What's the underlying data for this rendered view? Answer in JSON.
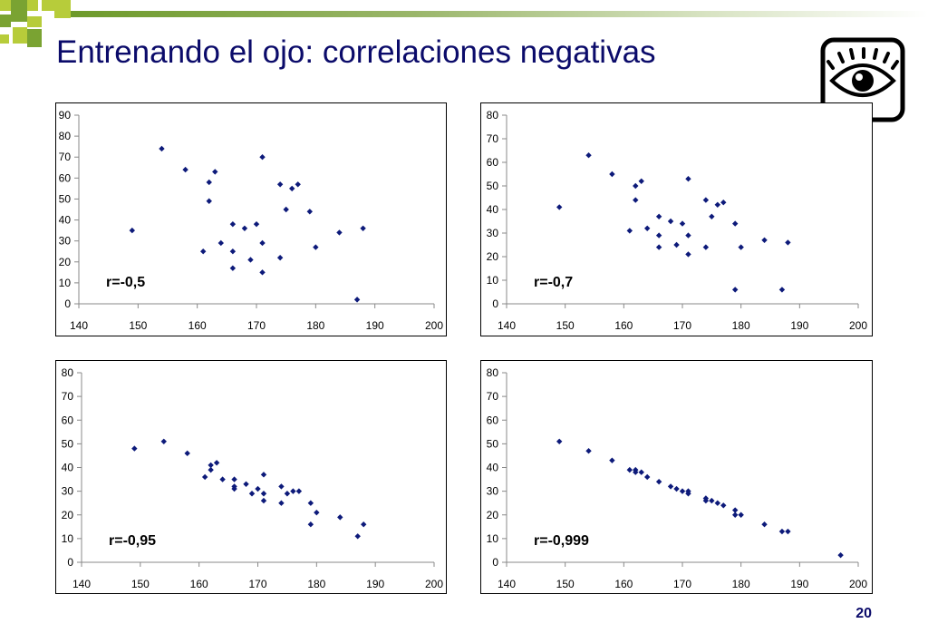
{
  "slide": {
    "title": "Entrenando el ojo: correlaciones negativas",
    "page_number": "20",
    "icon": "eye-icon",
    "colors": {
      "title": "#0b0b6a",
      "points": "#0d1a7a",
      "bar_green": "#7aa332",
      "square_green": "#b7cc3a"
    }
  },
  "chart_data": [
    {
      "type": "scatter",
      "annotation": "r=-0,5",
      "xlim": [
        140,
        200
      ],
      "xticks": [
        140,
        150,
        160,
        170,
        180,
        190,
        200
      ],
      "ylim": [
        0,
        90
      ],
      "yticks": [
        0,
        10,
        20,
        30,
        40,
        50,
        60,
        70,
        80,
        90
      ],
      "grid": false,
      "points": [
        [
          149,
          35
        ],
        [
          154,
          74
        ],
        [
          158,
          64
        ],
        [
          161,
          25
        ],
        [
          162,
          58
        ],
        [
          162,
          49
        ],
        [
          163,
          63
        ],
        [
          164,
          29
        ],
        [
          166,
          38
        ],
        [
          166,
          25
        ],
        [
          166,
          17
        ],
        [
          168,
          36
        ],
        [
          169,
          21
        ],
        [
          170,
          38
        ],
        [
          171,
          70
        ],
        [
          171,
          29
        ],
        [
          171,
          15
        ],
        [
          174,
          57
        ],
        [
          174,
          22
        ],
        [
          175,
          45
        ],
        [
          176,
          55
        ],
        [
          177,
          57
        ],
        [
          179,
          44
        ],
        [
          180,
          27
        ],
        [
          184,
          34
        ],
        [
          187,
          2
        ],
        [
          188,
          36
        ]
      ]
    },
    {
      "type": "scatter",
      "annotation": "r=-0,7",
      "xlim": [
        140,
        200
      ],
      "xticks": [
        140,
        150,
        160,
        170,
        180,
        190,
        200
      ],
      "ylim": [
        0,
        80
      ],
      "yticks": [
        0,
        10,
        20,
        30,
        40,
        50,
        60,
        70,
        80
      ],
      "grid": false,
      "points": [
        [
          149,
          41
        ],
        [
          154,
          63
        ],
        [
          158,
          55
        ],
        [
          161,
          31
        ],
        [
          162,
          50
        ],
        [
          162,
          44
        ],
        [
          163,
          52
        ],
        [
          164,
          32
        ],
        [
          166,
          37
        ],
        [
          166,
          24
        ],
        [
          166,
          29
        ],
        [
          168,
          35
        ],
        [
          169,
          25
        ],
        [
          170,
          34
        ],
        [
          171,
          53
        ],
        [
          171,
          29
        ],
        [
          171,
          21
        ],
        [
          174,
          44
        ],
        [
          174,
          24
        ],
        [
          175,
          37
        ],
        [
          176,
          42
        ],
        [
          177,
          43
        ],
        [
          179,
          34
        ],
        [
          179,
          6
        ],
        [
          180,
          24
        ],
        [
          184,
          27
        ],
        [
          187,
          6
        ],
        [
          188,
          26
        ]
      ]
    },
    {
      "type": "scatter",
      "annotation": "r=-0,95",
      "xlim": [
        140,
        200
      ],
      "xticks": [
        140,
        150,
        160,
        170,
        180,
        190,
        200
      ],
      "ylim": [
        0,
        80
      ],
      "yticks": [
        0,
        10,
        20,
        30,
        40,
        50,
        60,
        70,
        80
      ],
      "grid": false,
      "points": [
        [
          149,
          48
        ],
        [
          154,
          51
        ],
        [
          158,
          46
        ],
        [
          161,
          36
        ],
        [
          162,
          41
        ],
        [
          162,
          39
        ],
        [
          163,
          42
        ],
        [
          164,
          35
        ],
        [
          166,
          35
        ],
        [
          166,
          32
        ],
        [
          166,
          31
        ],
        [
          168,
          33
        ],
        [
          169,
          29
        ],
        [
          170,
          31
        ],
        [
          171,
          37
        ],
        [
          171,
          29
        ],
        [
          171,
          26
        ],
        [
          174,
          32
        ],
        [
          174,
          25
        ],
        [
          175,
          29
        ],
        [
          176,
          30
        ],
        [
          177,
          30
        ],
        [
          179,
          25
        ],
        [
          179,
          16
        ],
        [
          180,
          21
        ],
        [
          184,
          19
        ],
        [
          187,
          11
        ],
        [
          188,
          16
        ]
      ]
    },
    {
      "type": "scatter",
      "annotation": "r=-0,999",
      "xlim": [
        140,
        200
      ],
      "xticks": [
        140,
        150,
        160,
        170,
        180,
        190,
        200
      ],
      "ylim": [
        0,
        80
      ],
      "yticks": [
        0,
        10,
        20,
        30,
        40,
        50,
        60,
        70,
        80
      ],
      "grid": false,
      "points": [
        [
          149,
          51
        ],
        [
          154,
          47
        ],
        [
          158,
          43
        ],
        [
          161,
          39
        ],
        [
          162,
          39
        ],
        [
          162,
          38
        ],
        [
          163,
          38
        ],
        [
          164,
          36
        ],
        [
          166,
          34
        ],
        [
          168,
          32
        ],
        [
          169,
          31
        ],
        [
          170,
          30
        ],
        [
          171,
          30
        ],
        [
          171,
          29
        ],
        [
          174,
          27
        ],
        [
          174,
          26
        ],
        [
          175,
          26
        ],
        [
          176,
          25
        ],
        [
          177,
          24
        ],
        [
          179,
          22
        ],
        [
          179,
          20
        ],
        [
          180,
          20
        ],
        [
          184,
          16
        ],
        [
          187,
          13
        ],
        [
          188,
          13
        ],
        [
          197,
          3
        ]
      ]
    }
  ]
}
